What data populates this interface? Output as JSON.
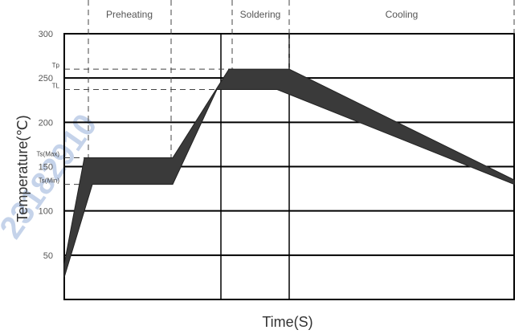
{
  "chart_data": {
    "type": "area",
    "title": "",
    "xlabel": "Time(S)",
    "ylabel": "Temperature(℃)",
    "ylim": [
      0,
      300
    ],
    "yticks": [
      50,
      100,
      150,
      200,
      250,
      300
    ],
    "grid": true,
    "phases": [
      "Preheating",
      "Soldering",
      "Cooling"
    ],
    "reference_levels": [
      {
        "label": "Tp",
        "value": 260
      },
      {
        "label": "TL",
        "value": 237
      },
      {
        "label": "Ts(Max)",
        "value": 160
      },
      {
        "label": "Ts(Min)",
        "value": 130
      }
    ],
    "series": [
      {
        "values_upper": [
          [
            0,
            40
          ],
          [
            25,
            160
          ],
          [
            135,
            160
          ],
          [
            205,
            260
          ],
          [
            280,
            260
          ],
          [
            560,
            135
          ]
        ],
        "values_lower": [
          [
            0,
            25
          ],
          [
            35,
            130
          ],
          [
            135,
            130
          ],
          [
            190,
            237
          ],
          [
            265,
            237
          ],
          [
            560,
            130
          ]
        ]
      }
    ]
  },
  "watermark": "23182910"
}
